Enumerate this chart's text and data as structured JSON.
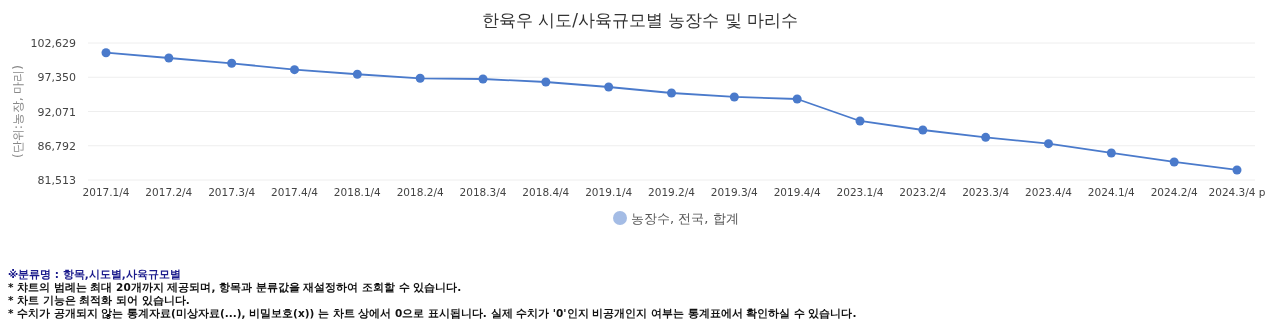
{
  "chart_data": {
    "type": "line",
    "title": "한육우 시도/사육규모별 농장수 및 마리수",
    "ylabel": "(단위:농장, 마리)",
    "categories": [
      "2017.1/4",
      "2017.2/4",
      "2017.3/4",
      "2017.4/4",
      "2018.1/4",
      "2018.2/4",
      "2018.3/4",
      "2018.4/4",
      "2019.1/4",
      "2019.2/4",
      "2019.3/4",
      "2019.4/4",
      "2023.1/4",
      "2023.2/4",
      "2023.3/4",
      "2023.4/4",
      "2024.1/4",
      "2024.2/4",
      "2024.3/4 p"
    ],
    "series": [
      {
        "name": "농장수, 전국, 합계",
        "color": "#4a7acb",
        "values": [
          101130,
          100320,
          99500,
          98520,
          97810,
          97190,
          97080,
          96620,
          95850,
          94920,
          94310,
          94000,
          90610,
          89220,
          88090,
          87110,
          85680,
          84290,
          83060
        ]
      }
    ],
    "ylim": [
      81513,
      102629
    ],
    "yticks": [
      {
        "value": 81513,
        "label": "81,513"
      },
      {
        "value": 86792,
        "label": "86,792"
      },
      {
        "value": 92071,
        "label": "92,071"
      },
      {
        "value": 97350,
        "label": "97,350"
      },
      {
        "value": 102629,
        "label": "102,629"
      }
    ],
    "grid": "y",
    "marker": "circle",
    "line_style": "solid",
    "legend": "bottom",
    "annotations": [
      "※분류명 : 항목,시도별,사육규모별",
      "* 챠트의 범례는 최대 20개까지 제공되며, 항목과 분류값을 재설정하여 조회할 수 있습니다.",
      "* 차트 기능은 최적화 되어 있습니다.",
      "* 수치가 공개되지 않는 통계자료(미상자료(...), 비밀보호(x)) 는 차트 상에서 0으로 표시됩니다. 실제 수치가 '0'인지 비공개인지 여부는 통계표에서 확인하실 수 있습니다."
    ]
  }
}
